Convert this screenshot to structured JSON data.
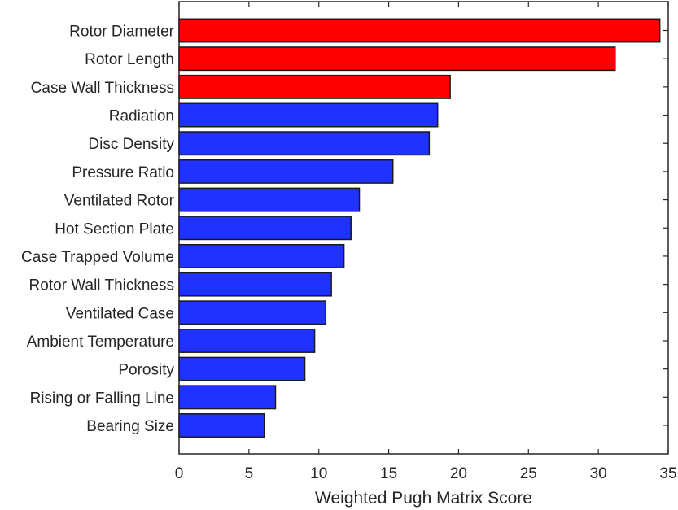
{
  "chart_data": {
    "type": "bar",
    "orientation": "horizontal",
    "title": "",
    "xlabel": "Weighted Pugh Matrix Score",
    "ylabel": "",
    "xlim": [
      0,
      35
    ],
    "xticks": [
      0,
      5,
      10,
      15,
      20,
      25,
      30,
      35
    ],
    "grid": false,
    "legend": null,
    "categories": [
      "Rotor Diameter",
      "Rotor Length",
      "Case Wall Thickness",
      "Radiation",
      "Disc Density",
      "Pressure Ratio",
      "Ventilated Rotor",
      "Hot Section Plate",
      "Case Trapped Volume",
      "Rotor Wall Thickness",
      "Ventilated Case",
      "Ambient Temperature",
      "Porosity",
      "Rising or Falling Line",
      "Bearing Size"
    ],
    "values": [
      34.4,
      31.2,
      19.4,
      18.5,
      17.9,
      15.3,
      12.9,
      12.3,
      11.8,
      10.9,
      10.5,
      9.7,
      9.0,
      6.9,
      6.1
    ],
    "highlight_count": 3,
    "colors": {
      "highlight": "#ff0000",
      "default": "#1f32ff",
      "edge": "#1a1a1a",
      "axis": "#262626"
    }
  }
}
